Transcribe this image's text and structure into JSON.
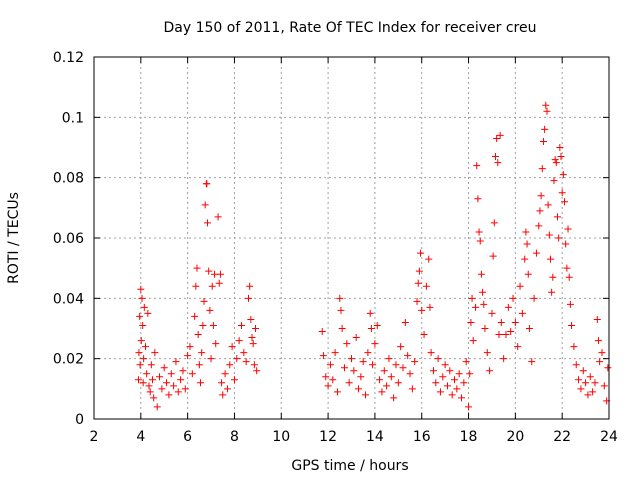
{
  "chart_data": {
    "type": "scatter",
    "title": "Day 150 of 2011, Rate Of TEC Index for receiver creu",
    "xlabel": "GPS time / hours",
    "ylabel": "ROTI / TECUs",
    "xlim": [
      2,
      24
    ],
    "ylim": [
      0,
      0.12
    ],
    "xticks": [
      2,
      4,
      6,
      8,
      10,
      12,
      14,
      16,
      18,
      20,
      22,
      24
    ],
    "xtick_labels": [
      "2",
      "4",
      "6",
      "8",
      "10",
      "12",
      "14",
      "16",
      "18",
      "20",
      "22",
      "24"
    ],
    "yticks": [
      0,
      0.02,
      0.04,
      0.06,
      0.08,
      0.1,
      0.12
    ],
    "ytick_labels": [
      "0",
      "0.02",
      "0.04",
      "0.06",
      "0.08",
      "0.1",
      "0.12"
    ],
    "grid": true,
    "marker": "+",
    "color": "#ff0000",
    "series": [
      {
        "name": "ROTI",
        "points": [
          [
            3.9,
            0.013
          ],
          [
            3.92,
            0.022
          ],
          [
            3.95,
            0.034
          ],
          [
            3.97,
            0.018
          ],
          [
            4.0,
            0.043
          ],
          [
            4.02,
            0.026
          ],
          [
            4.05,
            0.04
          ],
          [
            4.08,
            0.031
          ],
          [
            4.1,
            0.012
          ],
          [
            4.12,
            0.02
          ],
          [
            4.15,
            0.037
          ],
          [
            4.2,
            0.024
          ],
          [
            4.25,
            0.015
          ],
          [
            4.3,
            0.035
          ],
          [
            4.35,
            0.011
          ],
          [
            4.4,
            0.009
          ],
          [
            4.45,
            0.018
          ],
          [
            4.5,
            0.013
          ],
          [
            4.55,
            0.007
          ],
          [
            4.6,
            0.022
          ],
          [
            4.7,
            0.004
          ],
          [
            4.8,
            0.014
          ],
          [
            4.9,
            0.01
          ],
          [
            5.0,
            0.017
          ],
          [
            5.1,
            0.012
          ],
          [
            5.2,
            0.008
          ],
          [
            5.3,
            0.015
          ],
          [
            5.4,
            0.011
          ],
          [
            5.5,
            0.019
          ],
          [
            5.6,
            0.009
          ],
          [
            5.7,
            0.013
          ],
          [
            5.8,
            0.016
          ],
          [
            5.9,
            0.01
          ],
          [
            6.0,
            0.021
          ],
          [
            6.1,
            0.024
          ],
          [
            6.2,
            0.015
          ],
          [
            6.3,
            0.034
          ],
          [
            6.35,
            0.044
          ],
          [
            6.4,
            0.05
          ],
          [
            6.45,
            0.028
          ],
          [
            6.5,
            0.018
          ],
          [
            6.55,
            0.012
          ],
          [
            6.6,
            0.022
          ],
          [
            6.65,
            0.031
          ],
          [
            6.7,
            0.039
          ],
          [
            6.75,
            0.071
          ],
          [
            6.8,
            0.078
          ],
          [
            6.82,
            0.078
          ],
          [
            6.85,
            0.065
          ],
          [
            6.9,
            0.049
          ],
          [
            6.95,
            0.036
          ],
          [
            7.0,
            0.02
          ],
          [
            7.05,
            0.044
          ],
          [
            7.1,
            0.031
          ],
          [
            7.15,
            0.048
          ],
          [
            7.2,
            0.025
          ],
          [
            7.3,
            0.067
          ],
          [
            7.35,
            0.045
          ],
          [
            7.4,
            0.048
          ],
          [
            7.45,
            0.012
          ],
          [
            7.5,
            0.008
          ],
          [
            7.6,
            0.015
          ],
          [
            7.7,
            0.01
          ],
          [
            7.8,
            0.018
          ],
          [
            7.9,
            0.024
          ],
          [
            8.0,
            0.013
          ],
          [
            8.1,
            0.02
          ],
          [
            8.2,
            0.026
          ],
          [
            8.3,
            0.031
          ],
          [
            8.4,
            0.022
          ],
          [
            8.5,
            0.019
          ],
          [
            8.6,
            0.04
          ],
          [
            8.65,
            0.044
          ],
          [
            8.7,
            0.033
          ],
          [
            8.75,
            0.027
          ],
          [
            8.8,
            0.025
          ],
          [
            8.85,
            0.018
          ],
          [
            8.9,
            0.03
          ],
          [
            8.95,
            0.016
          ],
          [
            11.75,
            0.029
          ],
          [
            11.8,
            0.021
          ],
          [
            11.9,
            0.014
          ],
          [
            12.0,
            0.011
          ],
          [
            12.1,
            0.018
          ],
          [
            12.2,
            0.013
          ],
          [
            12.3,
            0.022
          ],
          [
            12.4,
            0.009
          ],
          [
            12.5,
            0.04
          ],
          [
            12.55,
            0.036
          ],
          [
            12.6,
            0.03
          ],
          [
            12.7,
            0.017
          ],
          [
            12.8,
            0.025
          ],
          [
            12.9,
            0.012
          ],
          [
            13.0,
            0.02
          ],
          [
            13.1,
            0.016
          ],
          [
            13.2,
            0.027
          ],
          [
            13.3,
            0.01
          ],
          [
            13.4,
            0.014
          ],
          [
            13.5,
            0.019
          ],
          [
            13.6,
            0.008
          ],
          [
            13.7,
            0.022
          ],
          [
            13.8,
            0.035
          ],
          [
            13.85,
            0.03
          ],
          [
            13.9,
            0.018
          ],
          [
            14.0,
            0.025
          ],
          [
            14.1,
            0.031
          ],
          [
            14.2,
            0.013
          ],
          [
            14.3,
            0.009
          ],
          [
            14.4,
            0.016
          ],
          [
            14.5,
            0.011
          ],
          [
            14.6,
            0.02
          ],
          [
            14.7,
            0.014
          ],
          [
            14.8,
            0.007
          ],
          [
            14.9,
            0.018
          ],
          [
            15.0,
            0.012
          ],
          [
            15.1,
            0.024
          ],
          [
            15.2,
            0.017
          ],
          [
            15.3,
            0.032
          ],
          [
            15.4,
            0.021
          ],
          [
            15.5,
            0.015
          ],
          [
            15.6,
            0.01
          ],
          [
            15.7,
            0.019
          ],
          [
            15.8,
            0.039
          ],
          [
            15.85,
            0.045
          ],
          [
            15.9,
            0.049
          ],
          [
            15.95,
            0.055
          ],
          [
            16.0,
            0.036
          ],
          [
            16.1,
            0.028
          ],
          [
            16.2,
            0.044
          ],
          [
            16.3,
            0.053
          ],
          [
            16.35,
            0.037
          ],
          [
            16.4,
            0.022
          ],
          [
            16.5,
            0.016
          ],
          [
            16.6,
            0.012
          ],
          [
            16.7,
            0.02
          ],
          [
            16.8,
            0.009
          ],
          [
            16.9,
            0.014
          ],
          [
            17.0,
            0.018
          ],
          [
            17.1,
            0.011
          ],
          [
            17.2,
            0.016
          ],
          [
            17.3,
            0.008
          ],
          [
            17.4,
            0.013
          ],
          [
            17.5,
            0.01
          ],
          [
            17.6,
            0.015
          ],
          [
            17.7,
            0.007
          ],
          [
            17.8,
            0.012
          ],
          [
            17.9,
            0.019
          ],
          [
            18.0,
            0.004
          ],
          [
            18.05,
            0.015
          ],
          [
            18.1,
            0.032
          ],
          [
            18.15,
            0.04
          ],
          [
            18.2,
            0.026
          ],
          [
            18.3,
            0.037
          ],
          [
            18.35,
            0.084
          ],
          [
            18.4,
            0.073
          ],
          [
            18.45,
            0.062
          ],
          [
            18.5,
            0.059
          ],
          [
            18.55,
            0.048
          ],
          [
            18.6,
            0.042
          ],
          [
            18.65,
            0.038
          ],
          [
            18.7,
            0.03
          ],
          [
            18.8,
            0.022
          ],
          [
            18.9,
            0.016
          ],
          [
            19.0,
            0.035
          ],
          [
            19.05,
            0.054
          ],
          [
            19.1,
            0.065
          ],
          [
            19.15,
            0.087
          ],
          [
            19.2,
            0.093
          ],
          [
            19.25,
            0.085
          ],
          [
            19.3,
            0.028
          ],
          [
            19.35,
            0.094
          ],
          [
            19.4,
            0.032
          ],
          [
            19.5,
            0.02
          ],
          [
            19.6,
            0.028
          ],
          [
            19.7,
            0.037
          ],
          [
            19.8,
            0.029
          ],
          [
            19.9,
            0.04
          ],
          [
            20.0,
            0.032
          ],
          [
            20.1,
            0.024
          ],
          [
            20.2,
            0.044
          ],
          [
            20.3,
            0.035
          ],
          [
            20.4,
            0.053
          ],
          [
            20.45,
            0.062
          ],
          [
            20.5,
            0.058
          ],
          [
            20.55,
            0.048
          ],
          [
            20.6,
            0.03
          ],
          [
            20.7,
            0.019
          ],
          [
            20.8,
            0.04
          ],
          [
            20.9,
            0.055
          ],
          [
            21.0,
            0.064
          ],
          [
            21.05,
            0.069
          ],
          [
            21.1,
            0.074
          ],
          [
            21.15,
            0.083
          ],
          [
            21.2,
            0.092
          ],
          [
            21.25,
            0.096
          ],
          [
            21.3,
            0.104
          ],
          [
            21.35,
            0.102
          ],
          [
            21.4,
            0.071
          ],
          [
            21.45,
            0.061
          ],
          [
            21.5,
            0.053
          ],
          [
            21.55,
            0.042
          ],
          [
            21.6,
            0.047
          ],
          [
            21.65,
            0.079
          ],
          [
            21.7,
            0.086
          ],
          [
            21.75,
            0.085
          ],
          [
            21.8,
            0.067
          ],
          [
            21.85,
            0.06
          ],
          [
            21.9,
            0.09
          ],
          [
            21.95,
            0.087
          ],
          [
            22.0,
            0.075
          ],
          [
            22.05,
            0.081
          ],
          [
            22.1,
            0.072
          ],
          [
            22.15,
            0.058
          ],
          [
            22.2,
            0.05
          ],
          [
            22.25,
            0.063
          ],
          [
            22.3,
            0.047
          ],
          [
            22.35,
            0.038
          ],
          [
            22.4,
            0.031
          ],
          [
            22.5,
            0.024
          ],
          [
            22.6,
            0.018
          ],
          [
            22.7,
            0.013
          ],
          [
            22.8,
            0.01
          ],
          [
            22.9,
            0.016
          ],
          [
            23.0,
            0.012
          ],
          [
            23.1,
            0.008
          ],
          [
            23.2,
            0.014
          ],
          [
            23.3,
            0.009
          ],
          [
            23.4,
            0.012
          ],
          [
            23.5,
            0.033
          ],
          [
            23.55,
            0.026
          ],
          [
            23.6,
            0.019
          ],
          [
            23.7,
            0.022
          ],
          [
            23.8,
            0.011
          ],
          [
            23.9,
            0.006
          ],
          [
            23.95,
            0.017
          ]
        ]
      }
    ]
  }
}
